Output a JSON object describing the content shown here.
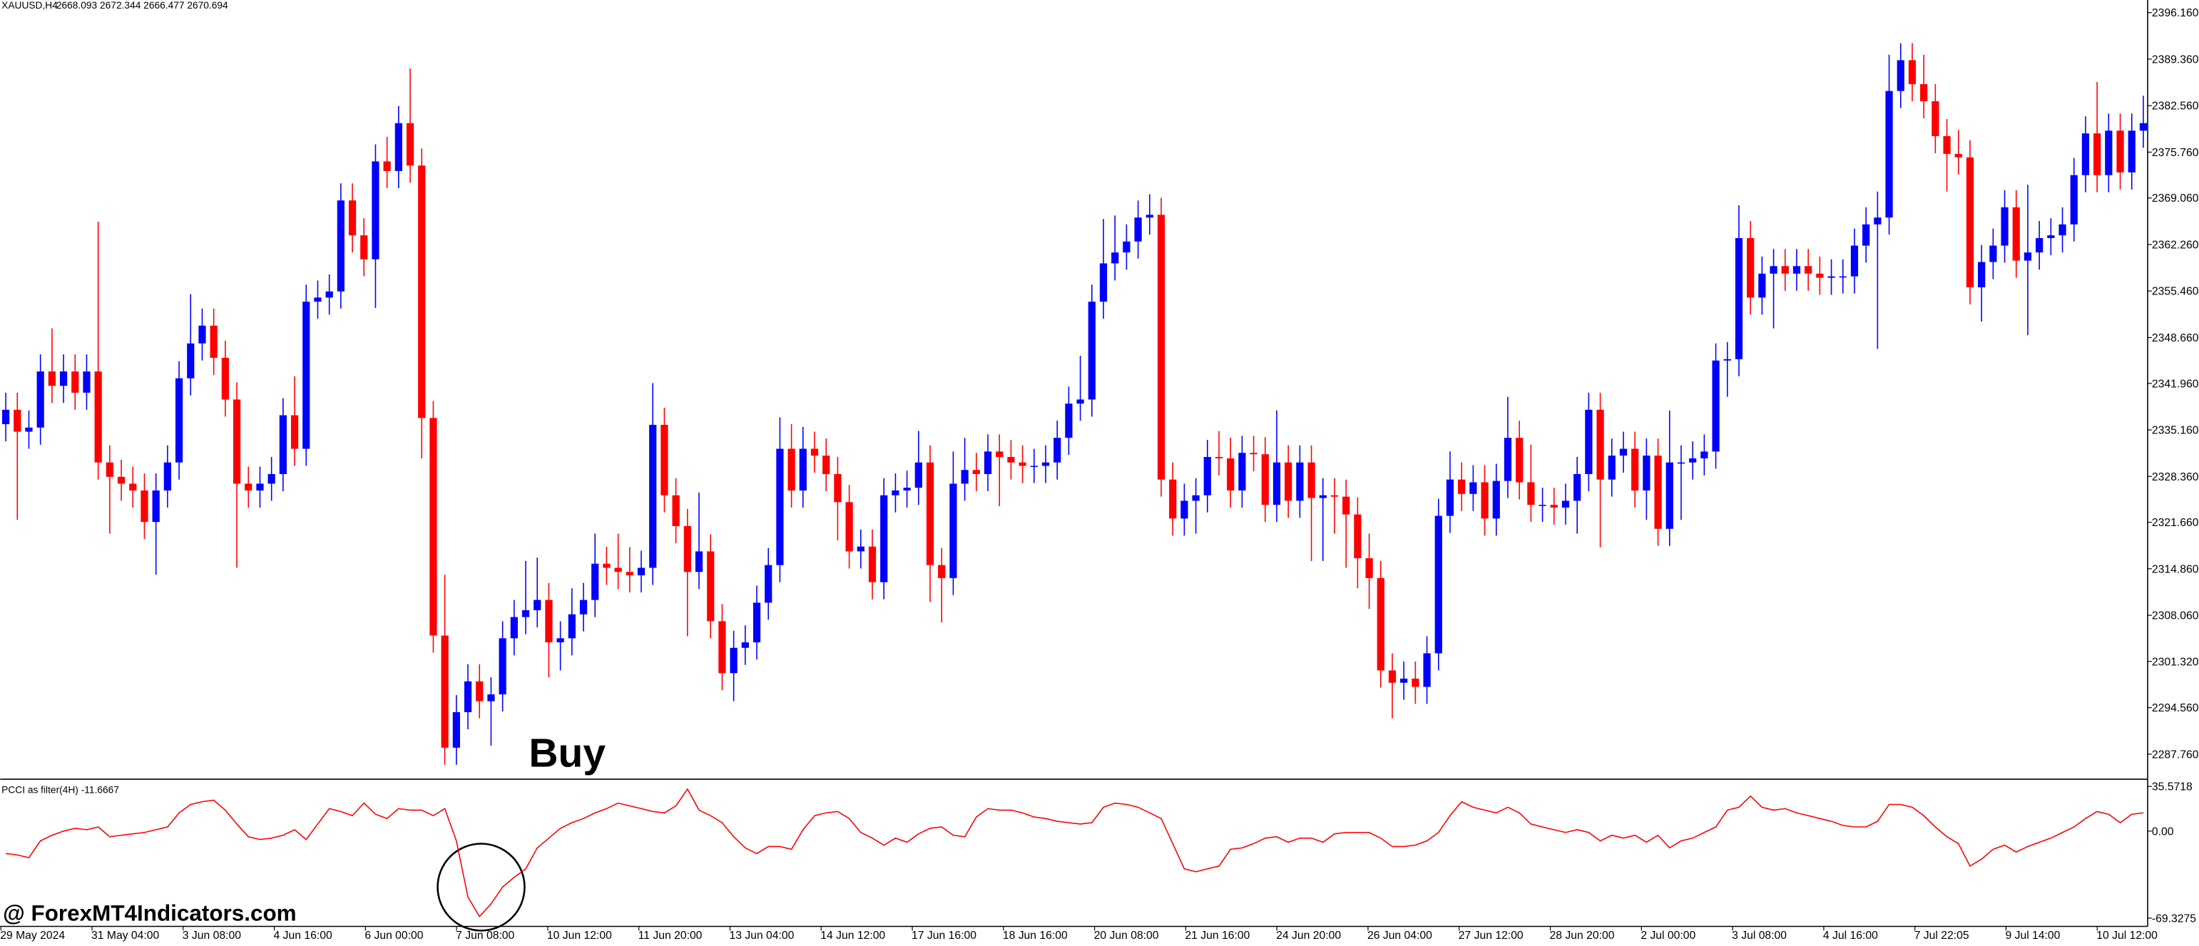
{
  "chart_data": [
    {
      "type": "candlestick",
      "title": "XAUUSD,H4",
      "quote": "2668.093 2672.344 2666.477 2670.694",
      "annotation": "Buy",
      "watermark": "@ ForexMT4Indicators.com",
      "up_color": "#0000ff",
      "down_color": "#ff0000",
      "ylim": [
        2284.3,
        2398.0
      ],
      "yticks": [
        {
          "value": 2396.16,
          "label": "2396.160"
        },
        {
          "value": 2389.36,
          "label": "2389.360"
        },
        {
          "value": 2382.56,
          "label": "2382.560"
        },
        {
          "value": 2375.76,
          "label": "2375.760"
        },
        {
          "value": 2369.06,
          "label": "2369.060"
        },
        {
          "value": 2362.26,
          "label": "2362.260"
        },
        {
          "value": 2355.46,
          "label": "2355.460"
        },
        {
          "value": 2348.66,
          "label": "2348.660"
        },
        {
          "value": 2341.96,
          "label": "2341.960"
        },
        {
          "value": 2335.16,
          "label": "2335.160"
        },
        {
          "value": 2328.36,
          "label": "2328.360"
        },
        {
          "value": 2321.66,
          "label": "2321.660"
        },
        {
          "value": 2314.86,
          "label": "2314.860"
        },
        {
          "value": 2308.06,
          "label": "2308.060"
        },
        {
          "value": 2301.32,
          "label": "2301.320"
        },
        {
          "value": 2294.56,
          "label": "2294.560"
        },
        {
          "value": 2287.76,
          "label": "2287.760"
        }
      ],
      "time_labels": [
        "29 May 2024",
        "31 May 04:00",
        "3 Jun 08:00",
        "4 Jun 16:00",
        "6 Jun 00:00",
        "7 Jun 08:00",
        "10 Jun 12:00",
        "11 Jun 20:00",
        "13 Jun 04:00",
        "14 Jun 12:00",
        "17 Jun 16:00",
        "18 Jun 16:00",
        "20 Jun 08:00",
        "21 Jun 16:00",
        "24 Jun 20:00",
        "26 Jun 04:00",
        "27 Jun 12:00",
        "28 Jun 20:00",
        "2 Jul 00:00",
        "3 Jul 08:00",
        "4 Jul 16:00",
        "7 Jul 22:05",
        "9 Jul 14:00",
        "10 Jul 12:00"
      ],
      "open": [
        2336.0,
        2338.1,
        2334.9,
        2335.5,
        2343.7,
        2341.6,
        2343.7,
        2340.6,
        2343.7,
        2330.4,
        2328.3,
        2327.3,
        2326.3,
        2321.7,
        2326.3,
        2330.4,
        2342.7,
        2347.8,
        2350.4,
        2345.7,
        2339.6,
        2327.3,
        2326.3,
        2327.3,
        2328.7,
        2337.3,
        2332.4,
        2353.9,
        2354.5,
        2355.4,
        2368.7,
        2363.6,
        2360.1,
        2374.4,
        2373.0,
        2380.0,
        2373.8,
        2336.9,
        2305.1,
        2288.7,
        2293.9,
        2298.4,
        2295.5,
        2296.5,
        2304.7,
        2307.8,
        2308.8,
        2310.3,
        2304.1,
        2304.7,
        2308.2,
        2310.3,
        2315.6,
        2315.0,
        2314.4,
        2313.9,
        2315.0,
        2335.9,
        2325.6,
        2321.1,
        2314.4,
        2317.4,
        2307.2,
        2299.6,
        2303.3,
        2304.1,
        2309.9,
        2315.4,
        2332.4,
        2326.3,
        2332.4,
        2331.4,
        2328.7,
        2324.6,
        2317.4,
        2318.1,
        2312.9,
        2325.6,
        2326.3,
        2326.7,
        2330.4,
        2315.4,
        2313.5,
        2327.3,
        2329.3,
        2328.7,
        2332.0,
        2331.2,
        2330.4,
        2329.9,
        2329.9,
        2330.4,
        2334.0,
        2339.0,
        2339.6,
        2353.9,
        2359.5,
        2361.1,
        2362.7,
        2366.2,
        2366.6,
        2327.9,
        2322.2,
        2324.8,
        2325.6,
        2331.2,
        2331.0,
        2326.3,
        2331.8,
        2331.6,
        2324.2,
        2330.4,
        2324.8,
        2330.4,
        2325.2,
        2325.6,
        2325.4,
        2322.8,
        2316.4,
        2313.5,
        2300.0,
        2298.2,
        2298.8,
        2297.6,
        2302.5,
        2322.6,
        2327.9,
        2325.8,
        2327.5,
        2322.2,
        2327.7,
        2334.0,
        2327.5,
        2324.2,
        2324.2,
        2323.8,
        2324.8,
        2328.7,
        2338.1,
        2327.9,
        2331.4,
        2332.4,
        2326.3,
        2331.4,
        2320.7,
        2330.4,
        2330.4,
        2331.0,
        2332.0,
        2345.3,
        2345.5,
        2363.2,
        2354.5,
        2358.0,
        2359.1,
        2358.0,
        2359.1,
        2358.0,
        2357.4,
        2357.6,
        2357.6,
        2362.1,
        2365.2,
        2366.2,
        2384.7,
        2389.2,
        2385.7,
        2383.2,
        2378.1,
        2375.5,
        2375.0,
        2356.0,
        2359.7,
        2362.1,
        2367.7,
        2359.9,
        2361.1,
        2363.2,
        2363.6,
        2365.2,
        2372.4,
        2378.5,
        2372.4,
        2378.9,
        2372.8,
        2378.9
      ],
      "high": [
        2340.6,
        2340.6,
        2338.0,
        2346.2,
        2350.0,
        2346.2,
        2346.2,
        2346.2,
        2365.6,
        2332.9,
        2330.8,
        2329.8,
        2328.8,
        2328.8,
        2332.9,
        2345.2,
        2355.0,
        2352.9,
        2352.9,
        2348.2,
        2342.1,
        2329.8,
        2329.8,
        2331.2,
        2339.8,
        2343.0,
        2356.4,
        2357.0,
        2357.9,
        2371.2,
        2371.2,
        2366.1,
        2376.9,
        2378.0,
        2382.5,
        2388.0,
        2376.3,
        2339.4,
        2314.0,
        2296.4,
        2300.9,
        2300.9,
        2299.0,
        2307.2,
        2310.3,
        2316.0,
        2316.5,
        2312.8,
        2307.2,
        2312.0,
        2312.8,
        2320.0,
        2318.1,
        2320.0,
        2318.0,
        2317.5,
        2342.0,
        2338.4,
        2328.1,
        2323.6,
        2326.0,
        2319.9,
        2309.7,
        2305.8,
        2306.6,
        2312.4,
        2317.9,
        2337.0,
        2336.0,
        2335.6,
        2334.9,
        2333.9,
        2331.2,
        2327.1,
        2320.6,
        2320.6,
        2328.1,
        2328.8,
        2329.2,
        2335.0,
        2332.9,
        2317.9,
        2332.0,
        2334.0,
        2331.8,
        2334.5,
        2334.5,
        2333.7,
        2332.9,
        2332.4,
        2332.9,
        2336.5,
        2341.5,
        2346.0,
        2356.4,
        2366.0,
        2366.5,
        2365.2,
        2368.7,
        2369.6,
        2369.1,
        2330.4,
        2327.3,
        2328.1,
        2333.7,
        2335.0,
        2334.0,
        2334.3,
        2334.3,
        2334.1,
        2338.0,
        2332.9,
        2332.9,
        2332.9,
        2328.1,
        2328.1,
        2327.9,
        2325.3,
        2320.0,
        2316.0,
        2302.5,
        2301.3,
        2301.3,
        2305.0,
        2325.1,
        2332.0,
        2330.4,
        2330.0,
        2330.0,
        2330.2,
        2340.0,
        2336.5,
        2333.0,
        2326.7,
        2326.7,
        2327.3,
        2331.2,
        2340.6,
        2340.6,
        2333.9,
        2334.9,
        2334.9,
        2333.9,
        2333.9,
        2338.0,
        2332.9,
        2333.5,
        2334.5,
        2347.8,
        2348.0,
        2368.0,
        2365.7,
        2360.5,
        2361.6,
        2361.6,
        2361.6,
        2361.6,
        2360.5,
        2360.1,
        2360.1,
        2364.6,
        2367.7,
        2370.0,
        2390.0,
        2391.7,
        2391.7,
        2390.0,
        2385.7,
        2380.6,
        2379.0,
        2377.5,
        2362.2,
        2364.6,
        2370.2,
        2370.2,
        2371.0,
        2365.7,
        2366.1,
        2367.7,
        2374.9,
        2381.0,
        2386.0,
        2381.4,
        2381.4,
        2381.4,
        2384.0
      ],
      "low": [
        2333.5,
        2322.0,
        2332.4,
        2333.0,
        2339.1,
        2339.1,
        2338.1,
        2338.1,
        2327.9,
        2320.0,
        2324.8,
        2323.8,
        2319.2,
        2314.0,
        2323.8,
        2327.9,
        2340.2,
        2345.3,
        2343.2,
        2337.1,
        2315.0,
        2323.8,
        2323.8,
        2324.8,
        2326.2,
        2329.9,
        2329.9,
        2351.4,
        2352.0,
        2352.9,
        2361.1,
        2357.6,
        2353.0,
        2370.5,
        2370.5,
        2371.3,
        2331.0,
        2302.6,
        2286.2,
        2286.2,
        2291.4,
        2293.0,
        2289.0,
        2294.0,
        2302.2,
        2305.3,
        2306.3,
        2299.0,
        2300.0,
        2302.2,
        2305.7,
        2307.8,
        2312.5,
        2311.9,
        2311.4,
        2311.4,
        2312.5,
        2323.1,
        2318.6,
        2305.0,
        2311.9,
        2304.7,
        2297.1,
        2295.5,
        2300.8,
        2301.6,
        2307.4,
        2312.9,
        2323.8,
        2323.8,
        2328.9,
        2326.2,
        2319.0,
        2314.9,
        2314.9,
        2310.4,
        2310.4,
        2323.1,
        2323.8,
        2324.2,
        2310.0,
        2307.0,
        2311.0,
        2324.8,
        2326.2,
        2326.2,
        2324.0,
        2327.9,
        2327.4,
        2327.4,
        2327.4,
        2327.9,
        2331.5,
        2336.5,
        2337.1,
        2351.4,
        2357.0,
        2358.6,
        2360.2,
        2363.7,
        2325.4,
        2319.7,
        2319.7,
        2320.0,
        2323.1,
        2328.5,
        2323.8,
        2323.8,
        2329.1,
        2321.7,
        2321.7,
        2322.3,
        2322.3,
        2316.0,
        2316.0,
        2320.0,
        2315.0,
        2312.0,
        2309.0,
        2297.5,
        2293.0,
        2295.7,
        2295.1,
        2295.1,
        2300.0,
        2320.1,
        2323.3,
        2323.3,
        2319.7,
        2319.7,
        2325.2,
        2325.0,
        2321.7,
        2321.7,
        2321.3,
        2321.3,
        2320.0,
        2326.2,
        2318.0,
        2325.4,
        2328.9,
        2323.8,
        2322.0,
        2318.2,
        2318.2,
        2322.0,
        2327.9,
        2328.5,
        2329.5,
        2340.0,
        2343.0,
        2352.0,
        2352.0,
        2350.0,
        2355.5,
        2355.5,
        2355.5,
        2354.9,
        2354.9,
        2355.1,
        2355.1,
        2359.6,
        2347.0,
        2363.7,
        2382.2,
        2383.2,
        2380.7,
        2375.6,
        2370.0,
        2372.5,
        2353.5,
        2351.0,
        2357.2,
        2359.6,
        2357.4,
        2349.0,
        2358.6,
        2360.7,
        2361.1,
        2362.7,
        2369.9,
        2369.9,
        2369.9,
        2370.3,
        2370.3,
        2376.4
      ],
      "close": [
        2338.1,
        2334.9,
        2335.5,
        2343.7,
        2341.6,
        2343.7,
        2340.6,
        2343.7,
        2330.4,
        2328.3,
        2327.3,
        2326.3,
        2321.7,
        2326.3,
        2330.4,
        2342.7,
        2347.8,
        2350.4,
        2345.7,
        2339.6,
        2327.3,
        2326.3,
        2327.3,
        2328.7,
        2337.3,
        2332.4,
        2353.9,
        2354.5,
        2355.4,
        2368.7,
        2363.6,
        2360.1,
        2374.4,
        2373.0,
        2380.0,
        2373.8,
        2336.9,
        2305.1,
        2288.7,
        2293.9,
        2298.4,
        2295.5,
        2296.5,
        2304.7,
        2307.8,
        2308.8,
        2310.3,
        2304.1,
        2304.7,
        2308.2,
        2310.3,
        2315.6,
        2315.0,
        2314.4,
        2313.9,
        2315.0,
        2335.9,
        2325.6,
        2321.1,
        2314.4,
        2317.4,
        2307.2,
        2299.6,
        2303.3,
        2304.1,
        2309.9,
        2315.4,
        2332.4,
        2326.3,
        2332.4,
        2331.4,
        2328.7,
        2324.6,
        2317.4,
        2318.1,
        2312.9,
        2325.6,
        2326.3,
        2326.7,
        2330.4,
        2315.4,
        2313.5,
        2327.3,
        2329.3,
        2328.7,
        2332.0,
        2331.2,
        2330.4,
        2329.9,
        2329.9,
        2330.4,
        2334.0,
        2339.0,
        2339.6,
        2353.9,
        2359.5,
        2361.1,
        2362.7,
        2366.2,
        2366.6,
        2327.9,
        2322.2,
        2324.8,
        2325.6,
        2331.2,
        2331.0,
        2326.3,
        2331.8,
        2331.6,
        2324.2,
        2330.4,
        2324.8,
        2330.4,
        2325.2,
        2325.6,
        2325.4,
        2322.8,
        2316.4,
        2313.5,
        2300.0,
        2298.2,
        2298.8,
        2297.6,
        2302.5,
        2322.6,
        2327.9,
        2325.8,
        2327.5,
        2322.2,
        2327.7,
        2334.0,
        2327.5,
        2324.2,
        2324.2,
        2323.8,
        2324.8,
        2328.7,
        2338.1,
        2327.9,
        2331.4,
        2332.4,
        2326.3,
        2331.4,
        2320.7,
        2330.4,
        2330.4,
        2331.0,
        2332.0,
        2345.3,
        2345.5,
        2363.2,
        2354.5,
        2358.0,
        2359.1,
        2358.0,
        2359.1,
        2358.0,
        2357.4,
        2357.6,
        2357.6,
        2362.1,
        2365.2,
        2366.2,
        2384.7,
        2389.2,
        2385.7,
        2383.2,
        2378.1,
        2375.5,
        2375.0,
        2356.0,
        2359.7,
        2362.1,
        2367.7,
        2359.9,
        2361.1,
        2363.2,
        2363.6,
        2365.2,
        2372.4,
        2378.5,
        2372.4,
        2378.9,
        2372.8,
        2378.9,
        2380.0
      ]
    },
    {
      "type": "line",
      "title": "PCCI as filter(4H) -11.6667",
      "ylim": [
        -74.8,
        40.2
      ],
      "yticks": [
        {
          "value": 35.5718,
          "label": "35.5718"
        },
        {
          "value": 0,
          "label": "0.00"
        },
        {
          "value": -69.3275,
          "label": "-69.3275"
        }
      ],
      "series": [
        {
          "color": "#ff0000",
          "values": [
            -17.9,
            -19.0,
            -21.2,
            -7.8,
            -3.3,
            0,
            2.2,
            1.1,
            3.3,
            -4.5,
            -3.3,
            -2.2,
            -1.1,
            1.1,
            3.3,
            14.5,
            21.2,
            23.4,
            24.6,
            16.7,
            5.6,
            -4.5,
            -6.7,
            -5.6,
            -3.3,
            1.1,
            -6.7,
            5.6,
            17.9,
            15.6,
            12.3,
            22.3,
            13.4,
            10.0,
            17.9,
            16.7,
            16.7,
            12.3,
            17.9,
            -7.8,
            -52.5,
            -68.1,
            -58.0,
            -44.6,
            -36.8,
            -30.1,
            -13.4,
            -5.6,
            2.2,
            6.7,
            10.0,
            14.5,
            17.9,
            22.3,
            20.1,
            17.9,
            15.6,
            14.5,
            20.1,
            33.5,
            16.7,
            12.3,
            6.7,
            -4.5,
            -13.4,
            -17.9,
            -12.3,
            -12.3,
            -14.5,
            1.1,
            12.3,
            14.5,
            15.6,
            10.0,
            -1.1,
            -5.6,
            -11.2,
            -5.6,
            -8.9,
            -2.2,
            2.2,
            3.3,
            -3.3,
            -4.5,
            11.2,
            17.9,
            16.7,
            16.7,
            14.5,
            11.2,
            10.0,
            7.8,
            6.7,
            5.6,
            6.7,
            19.0,
            22.3,
            21.2,
            19.0,
            14.5,
            10.0,
            -10.0,
            -30.1,
            -32.4,
            -30.1,
            -27.9,
            -14.5,
            -13.4,
            -10.0,
            -5.6,
            -4.5,
            -8.9,
            -5.6,
            -5.6,
            -8.9,
            -2.2,
            -1.1,
            -1.1,
            -1.1,
            -5.6,
            -12.3,
            -12.3,
            -11.2,
            -7.8,
            -1.1,
            12.3,
            23.4,
            19.0,
            16.7,
            14.5,
            19.0,
            14.5,
            5.6,
            3.3,
            1.1,
            -1.1,
            1.1,
            -1.1,
            -7.8,
            -3.3,
            -5.6,
            -3.3,
            -8.9,
            -3.3,
            -13.4,
            -7.8,
            -5.6,
            -1.1,
            3.3,
            16.7,
            19.0,
            27.9,
            19.0,
            16.7,
            17.9,
            14.5,
            12.3,
            10.0,
            7.8,
            4.5,
            3.3,
            3.3,
            7.8,
            21.2,
            21.2,
            19.0,
            12.3,
            3.3,
            -4.5,
            -10.0,
            -27.9,
            -22.3,
            -14.5,
            -11.2,
            -16.7,
            -12.3,
            -8.9,
            -5.6,
            -1.1,
            3.3,
            10.0,
            15.6,
            13.4,
            6.7,
            13.4,
            14.5
          ]
        }
      ]
    }
  ]
}
